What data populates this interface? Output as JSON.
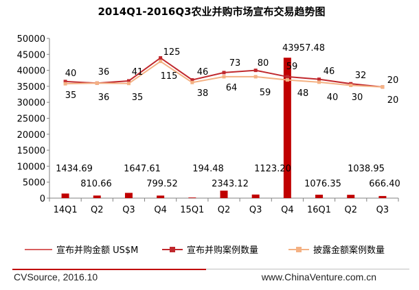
{
  "chart_data": {
    "type": "bar",
    "title": "2014Q1-2016Q3农业并购市场宣布交易趋势图",
    "categories": [
      "14Q1",
      "Q2",
      "Q3",
      "Q4",
      "15Q1",
      "Q2",
      "Q3",
      "Q4",
      "16Q1",
      "Q2",
      "Q3"
    ],
    "ylim": [
      0,
      50000
    ],
    "yticks": [
      0,
      5000,
      10000,
      15000,
      20000,
      25000,
      30000,
      35000,
      40000,
      45000,
      50000
    ],
    "grid": false,
    "legend_position": "bottom",
    "bar_labels": [
      "1434.69",
      "810.66",
      "1647.61",
      "799.52",
      "194.48",
      "2343.12",
      "1123.20",
      "43957.48",
      "1076.35",
      "1038.95",
      "666.40"
    ],
    "series": [
      {
        "name": "宣布并购金额 US$M",
        "type": "bar",
        "color": "#c00000",
        "values": [
          1434.69,
          810.66,
          1647.61,
          799.52,
          194.48,
          2343.12,
          1123.2,
          43957.48,
          1076.35,
          1038.95,
          666.4
        ]
      },
      {
        "name": "宣布并购案例数量",
        "type": "line",
        "color": "#c0282d",
        "values": [
          36500,
          36000,
          36700,
          43900,
          37000,
          39300,
          40000,
          38000,
          37200,
          35800,
          34800
        ],
        "labels": [
          "40",
          "36",
          "41",
          "125",
          "46",
          "73",
          "80",
          "59",
          "46",
          "32",
          "20"
        ]
      },
      {
        "name": "披露金额案例数量",
        "type": "line",
        "color": "#f4b183",
        "values": [
          35800,
          36000,
          35900,
          42800,
          36200,
          38000,
          38000,
          37000,
          36300,
          35300,
          34800
        ],
        "labels": [
          "35",
          "36",
          "35",
          "115",
          "38",
          "64",
          "59",
          "48",
          "40",
          "30",
          "20"
        ]
      }
    ]
  },
  "legend": {
    "item1": "宣布并购金额 US$M",
    "item2": "宣布并购案例数量",
    "item3": "披露金额案例数量"
  },
  "footer": {
    "source": "CVSource, 2016.10",
    "website": "www.ChinaVenture.com.cn"
  }
}
